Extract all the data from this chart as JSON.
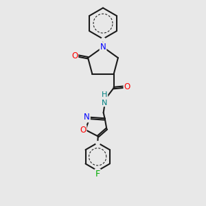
{
  "bg_color": "#e8e8e8",
  "line_color": "#1a1a1a",
  "bond_width": 1.5,
  "atom_colors": {
    "N": "#0000ff",
    "O": "#ff0000",
    "F": "#00aa00",
    "NH_color": "#008080",
    "C": "#1a1a1a"
  },
  "font_size": 8.5
}
